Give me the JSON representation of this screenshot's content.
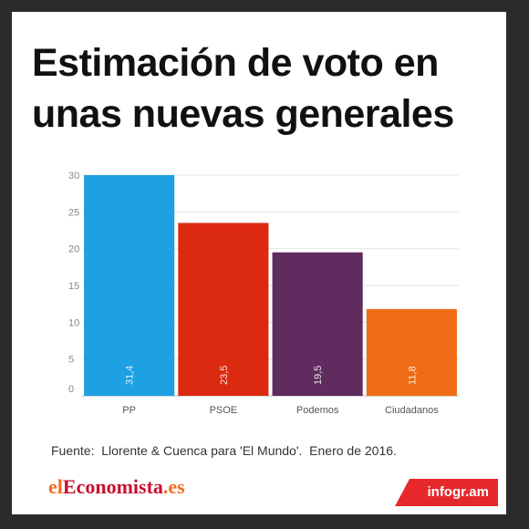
{
  "chart_data": {
    "type": "bar",
    "title": "Estimación de voto en unas nuevas generales",
    "categories": [
      "PP",
      "PSOE",
      "Podemos",
      "Ciudadanos"
    ],
    "values": [
      31.4,
      23.5,
      19.5,
      11.8
    ],
    "value_labels": [
      "31,4",
      "23,5",
      "19,5",
      "11,8"
    ],
    "colors": [
      "#1da1e3",
      "#dc2a11",
      "#602b5e",
      "#ee6c16"
    ],
    "ylim": [
      0,
      30
    ],
    "yticks": [
      0,
      5,
      10,
      15,
      20,
      25,
      30
    ],
    "xlabel": "",
    "ylabel": "",
    "grid": true,
    "legend": "none"
  },
  "source": "Fuente:  Llorente & Cuenca para 'El Mundo'.  Enero de 2016.",
  "brand": {
    "part1": "el",
    "part2": "Economista",
    "part3": ".es"
  },
  "badge": "infogr.am"
}
